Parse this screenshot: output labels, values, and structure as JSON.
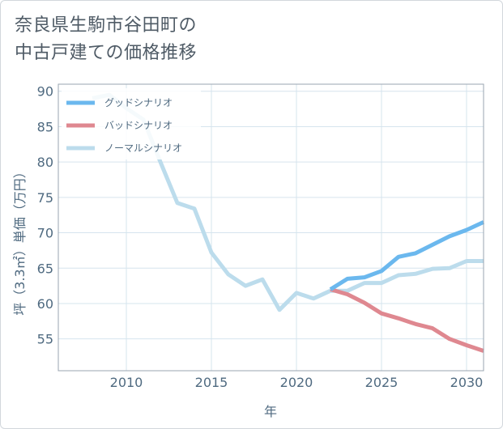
{
  "title_lines": [
    "奈良県生駒市谷田町の",
    "中古戸建ての価格推移"
  ],
  "chart_data": {
    "type": "line",
    "xlabel": "年",
    "ylabel": "坪（3.3㎡）単価（万円）",
    "xlim": [
      2006,
      2031
    ],
    "ylim": [
      50.5,
      91
    ],
    "x_ticks": [
      2010,
      2015,
      2020,
      2025,
      2030
    ],
    "y_ticks": [
      55,
      60,
      65,
      70,
      75,
      80,
      85,
      90
    ],
    "grid": true,
    "legend_position": "top-left",
    "series": [
      {
        "name": "グッドシナリオ",
        "color": "#6bb8ee",
        "x": [
          2022,
          2023,
          2024,
          2025,
          2026,
          2027,
          2028,
          2029,
          2030,
          2031
        ],
        "y": [
          62.0,
          63.5,
          63.7,
          64.6,
          66.6,
          67.1,
          68.3,
          69.5,
          70.4,
          71.5
        ]
      },
      {
        "name": "バッドシナリオ",
        "color": "#df8890",
        "x": [
          2022,
          2023,
          2024,
          2025,
          2026,
          2027,
          2028,
          2029,
          2030,
          2031
        ],
        "y": [
          62.0,
          61.3,
          60.1,
          58.6,
          57.9,
          57.1,
          56.5,
          55.0,
          54.1,
          53.3
        ]
      },
      {
        "name": "ノーマルシナリオ",
        "color": "#bcdcec",
        "x": [
          2008,
          2009,
          2010,
          2011,
          2012,
          2013,
          2014,
          2015,
          2016,
          2017,
          2018,
          2019,
          2020,
          2021,
          2022,
          2023,
          2024,
          2025,
          2026,
          2027,
          2028,
          2029,
          2030,
          2031
        ],
        "y": [
          89.0,
          89.5,
          87.6,
          86.0,
          80.0,
          74.2,
          73.4,
          67.2,
          64.1,
          62.5,
          63.4,
          59.1,
          61.5,
          60.7,
          61.8,
          61.8,
          62.9,
          62.9,
          64.0,
          64.2,
          64.9,
          65.0,
          66.0,
          66.0
        ]
      }
    ]
  }
}
